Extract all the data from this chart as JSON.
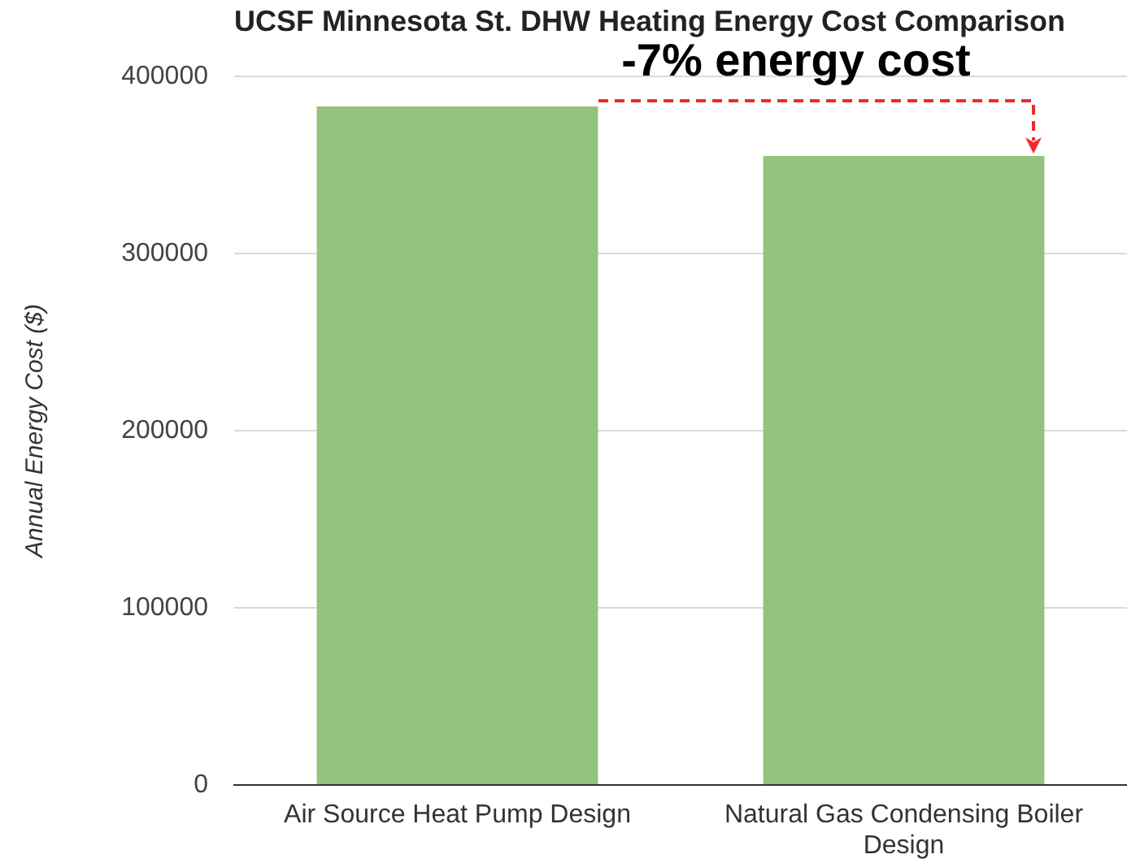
{
  "chart_data": {
    "type": "bar",
    "title": "UCSF Minnesota St. DHW Heating Energy Cost Comparison",
    "ylabel": "Annual Energy Cost ($)",
    "categories": [
      "Air Source Heat Pump Design",
      "Natural Gas Condensing Boiler Design"
    ],
    "values": [
      383000,
      355000
    ],
    "color": "#93c47d",
    "ylim": [
      0,
      400000
    ],
    "yticks": [
      0,
      100000,
      200000,
      300000,
      400000
    ],
    "grid": "y",
    "legend": false,
    "annotations": [
      {
        "text": "-7% energy cost",
        "x": "Natural Gas Condensing Boiler Design",
        "y": 355000
      }
    ]
  }
}
